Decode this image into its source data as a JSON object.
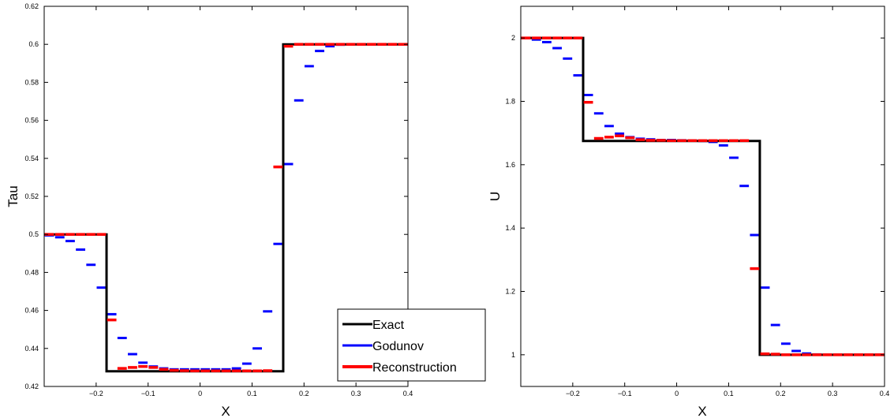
{
  "chart_data": [
    {
      "type": "line",
      "xlabel": "X",
      "ylabel": "Tau",
      "xlim": [
        -0.3,
        0.4
      ],
      "ylim": [
        0.42,
        0.62
      ],
      "xticks": [
        -0.2,
        -0.1,
        0,
        0.1,
        0.2,
        0.3,
        0.4
      ],
      "xtick_labels": [
        "−0.2",
        "−0.1",
        "0",
        "0.1",
        "0.2",
        "0.3",
        "0.4"
      ],
      "yticks": [
        0.42,
        0.44,
        0.46,
        0.48,
        0.5,
        0.52,
        0.54,
        0.56,
        0.58,
        0.6,
        0.62
      ],
      "ytick_labels": [
        "0.42",
        "0.44",
        "0.46",
        "0.48",
        "0.5",
        "0.52",
        "0.54",
        "0.56",
        "0.58",
        "0.6",
        "0.62"
      ],
      "grid": false,
      "legend": {
        "position": "bottom-right",
        "entries": [
          "Exact",
          "Godunov",
          "Reconstruction"
        ]
      },
      "series": [
        {
          "name": "Exact",
          "color": "#000000",
          "style": "line",
          "x": [
            -0.3,
            -0.18,
            -0.18,
            0.16,
            0.16,
            0.4
          ],
          "y": [
            0.5,
            0.5,
            0.428,
            0.428,
            0.6,
            0.6
          ]
        },
        {
          "name": "Godunov",
          "color": "#0000ff",
          "style": "cell-dash",
          "cell_width": 0.018,
          "x": [
            -0.29,
            -0.27,
            -0.25,
            -0.23,
            -0.21,
            -0.19,
            -0.17,
            -0.15,
            -0.13,
            -0.11,
            -0.09,
            -0.07,
            -0.05,
            -0.03,
            -0.01,
            0.01,
            0.03,
            0.05,
            0.07,
            0.09,
            0.11,
            0.13,
            0.15,
            0.17,
            0.19,
            0.21,
            0.23,
            0.25,
            0.27,
            0.29,
            0.31,
            0.33,
            0.35,
            0.37,
            0.39
          ],
          "y": [
            0.4995,
            0.4985,
            0.4965,
            0.492,
            0.484,
            0.472,
            0.458,
            0.4455,
            0.437,
            0.4325,
            0.4305,
            0.4295,
            0.429,
            0.429,
            0.429,
            0.429,
            0.429,
            0.429,
            0.4295,
            0.432,
            0.44,
            0.4595,
            0.495,
            0.537,
            0.5705,
            0.5885,
            0.5965,
            0.599,
            0.5998,
            0.6,
            0.6,
            0.6,
            0.6,
            0.6,
            0.6
          ]
        },
        {
          "name": "Reconstruction",
          "color": "#ff0000",
          "style": "cell-dash",
          "cell_width": 0.018,
          "x": [
            -0.29,
            -0.27,
            -0.25,
            -0.23,
            -0.21,
            -0.19,
            -0.17,
            -0.15,
            -0.13,
            -0.11,
            -0.09,
            -0.07,
            -0.05,
            -0.03,
            -0.01,
            0.01,
            0.03,
            0.05,
            0.07,
            0.09,
            0.11,
            0.13,
            0.15,
            0.17,
            0.19,
            0.21,
            0.23,
            0.25,
            0.27,
            0.29,
            0.31,
            0.33,
            0.35,
            0.37,
            0.39
          ],
          "y": [
            0.5,
            0.5,
            0.5,
            0.5,
            0.5,
            0.5,
            0.455,
            0.4295,
            0.43,
            0.4305,
            0.43,
            0.429,
            0.4285,
            0.4283,
            0.4282,
            0.4282,
            0.4282,
            0.4282,
            0.4282,
            0.4282,
            0.4282,
            0.4283,
            0.5355,
            0.599,
            0.6,
            0.6,
            0.6,
            0.6,
            0.6,
            0.6,
            0.6,
            0.6,
            0.6,
            0.6,
            0.6
          ]
        }
      ]
    },
    {
      "type": "line",
      "xlabel": "X",
      "ylabel": "U",
      "xlim": [
        -0.3,
        0.4
      ],
      "ylim": [
        0.9,
        2.1
      ],
      "xticks": [
        -0.2,
        -0.1,
        0,
        0.1,
        0.2,
        0.3,
        0.4
      ],
      "xtick_labels": [
        "−0.2",
        "−0.1",
        "0",
        "0.1",
        "0.2",
        "0.3",
        "0.4"
      ],
      "yticks": [
        1,
        1.2,
        1.4,
        1.6,
        1.8,
        2
      ],
      "ytick_labels": [
        "1",
        "1.2",
        "1.4",
        "1.6",
        "1.8",
        "2"
      ],
      "grid": false,
      "series": [
        {
          "name": "Exact",
          "color": "#000000",
          "style": "line",
          "x": [
            -0.3,
            -0.18,
            -0.18,
            0.16,
            0.16,
            0.4
          ],
          "y": [
            2.0,
            2.0,
            1.675,
            1.675,
            1.0,
            1.0
          ]
        },
        {
          "name": "Godunov",
          "color": "#0000ff",
          "style": "cell-dash",
          "cell_width": 0.018,
          "x": [
            -0.29,
            -0.27,
            -0.25,
            -0.23,
            -0.21,
            -0.19,
            -0.17,
            -0.15,
            -0.13,
            -0.11,
            -0.09,
            -0.07,
            -0.05,
            -0.03,
            -0.01,
            0.01,
            0.03,
            0.05,
            0.07,
            0.09,
            0.11,
            0.13,
            0.15,
            0.17,
            0.19,
            0.21,
            0.23,
            0.25,
            0.27,
            0.29,
            0.31,
            0.33,
            0.35,
            0.37,
            0.39
          ],
          "y": [
            2.0,
            1.995,
            1.987,
            1.968,
            1.935,
            1.882,
            1.82,
            1.762,
            1.722,
            1.698,
            1.687,
            1.682,
            1.68,
            1.678,
            1.678,
            1.677,
            1.676,
            1.675,
            1.672,
            1.661,
            1.622,
            1.533,
            1.378,
            1.212,
            1.094,
            1.035,
            1.012,
            1.004,
            1.001,
            1.0,
            1.0,
            1.0,
            1.0,
            1.0,
            1.0
          ]
        },
        {
          "name": "Reconstruction",
          "color": "#ff0000",
          "style": "cell-dash",
          "cell_width": 0.018,
          "x": [
            -0.29,
            -0.27,
            -0.25,
            -0.23,
            -0.21,
            -0.19,
            -0.17,
            -0.15,
            -0.13,
            -0.11,
            -0.09,
            -0.07,
            -0.05,
            -0.03,
            -0.01,
            0.01,
            0.03,
            0.05,
            0.07,
            0.09,
            0.11,
            0.13,
            0.15,
            0.17,
            0.19,
            0.21,
            0.23,
            0.25,
            0.27,
            0.29,
            0.31,
            0.33,
            0.35,
            0.37,
            0.39
          ],
          "y": [
            2.0,
            2.0,
            2.0,
            2.0,
            2.0,
            2.0,
            1.797,
            1.683,
            1.687,
            1.691,
            1.685,
            1.679,
            1.677,
            1.677,
            1.676,
            1.676,
            1.676,
            1.676,
            1.676,
            1.676,
            1.676,
            1.676,
            1.272,
            1.003,
            1.002,
            1.0,
            1.0,
            1.0,
            1.0,
            1.0,
            1.0,
            1.0,
            1.0,
            1.0,
            1.0
          ]
        }
      ]
    }
  ]
}
